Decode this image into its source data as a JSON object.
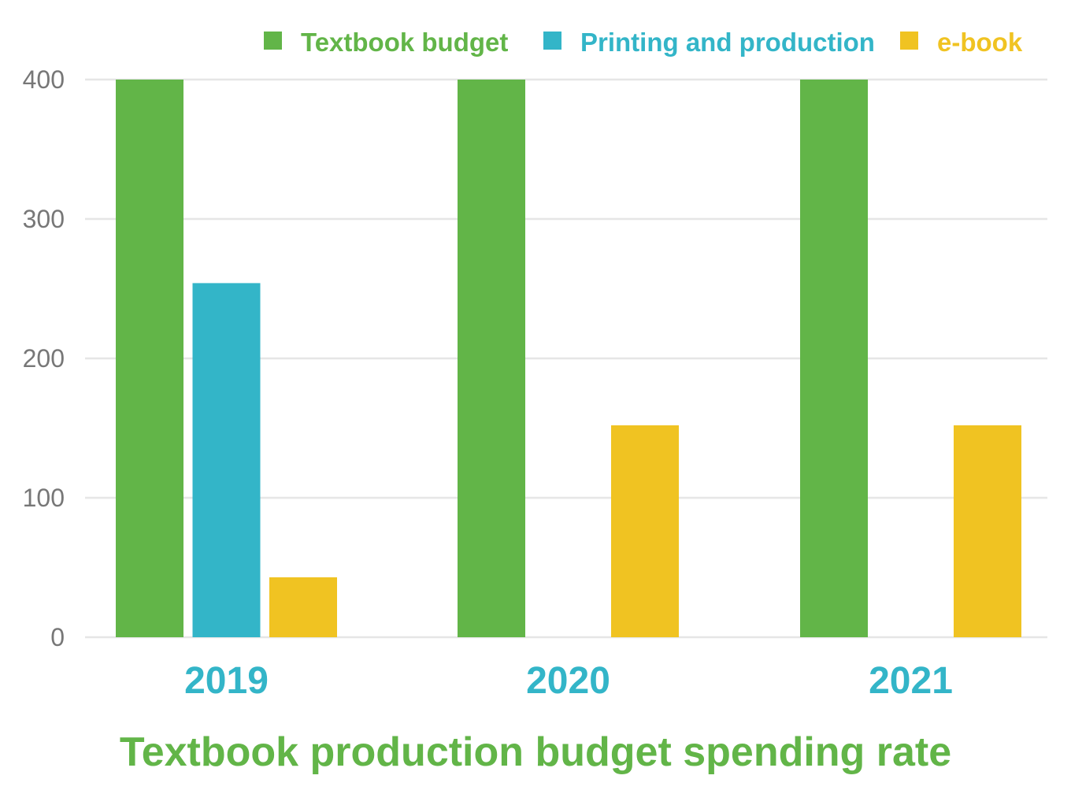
{
  "chart_data": {
    "type": "bar",
    "title": "Textbook production budget spending rate",
    "xlabel": "",
    "ylabel": "",
    "categories": [
      "2019",
      "2020",
      "2021"
    ],
    "series": [
      {
        "name": "Textbook budget",
        "color": "#62b548",
        "values": [
          400,
          400,
          400
        ]
      },
      {
        "name": "Printing and production",
        "color": "#33b5c8",
        "values": [
          254,
          0,
          0
        ]
      },
      {
        "name": "e-book",
        "color": "#f0c322",
        "values": [
          43,
          152,
          152
        ]
      }
    ],
    "ylim": [
      0,
      400
    ],
    "yticks": [
      0,
      100,
      200,
      300,
      400
    ],
    "grid": true,
    "legend_position": "top-right",
    "colors": {
      "title": "#62b548",
      "category_labels": "#33b5c8",
      "tick_labels": "#777777",
      "gridline": "#e6e6e6"
    }
  }
}
